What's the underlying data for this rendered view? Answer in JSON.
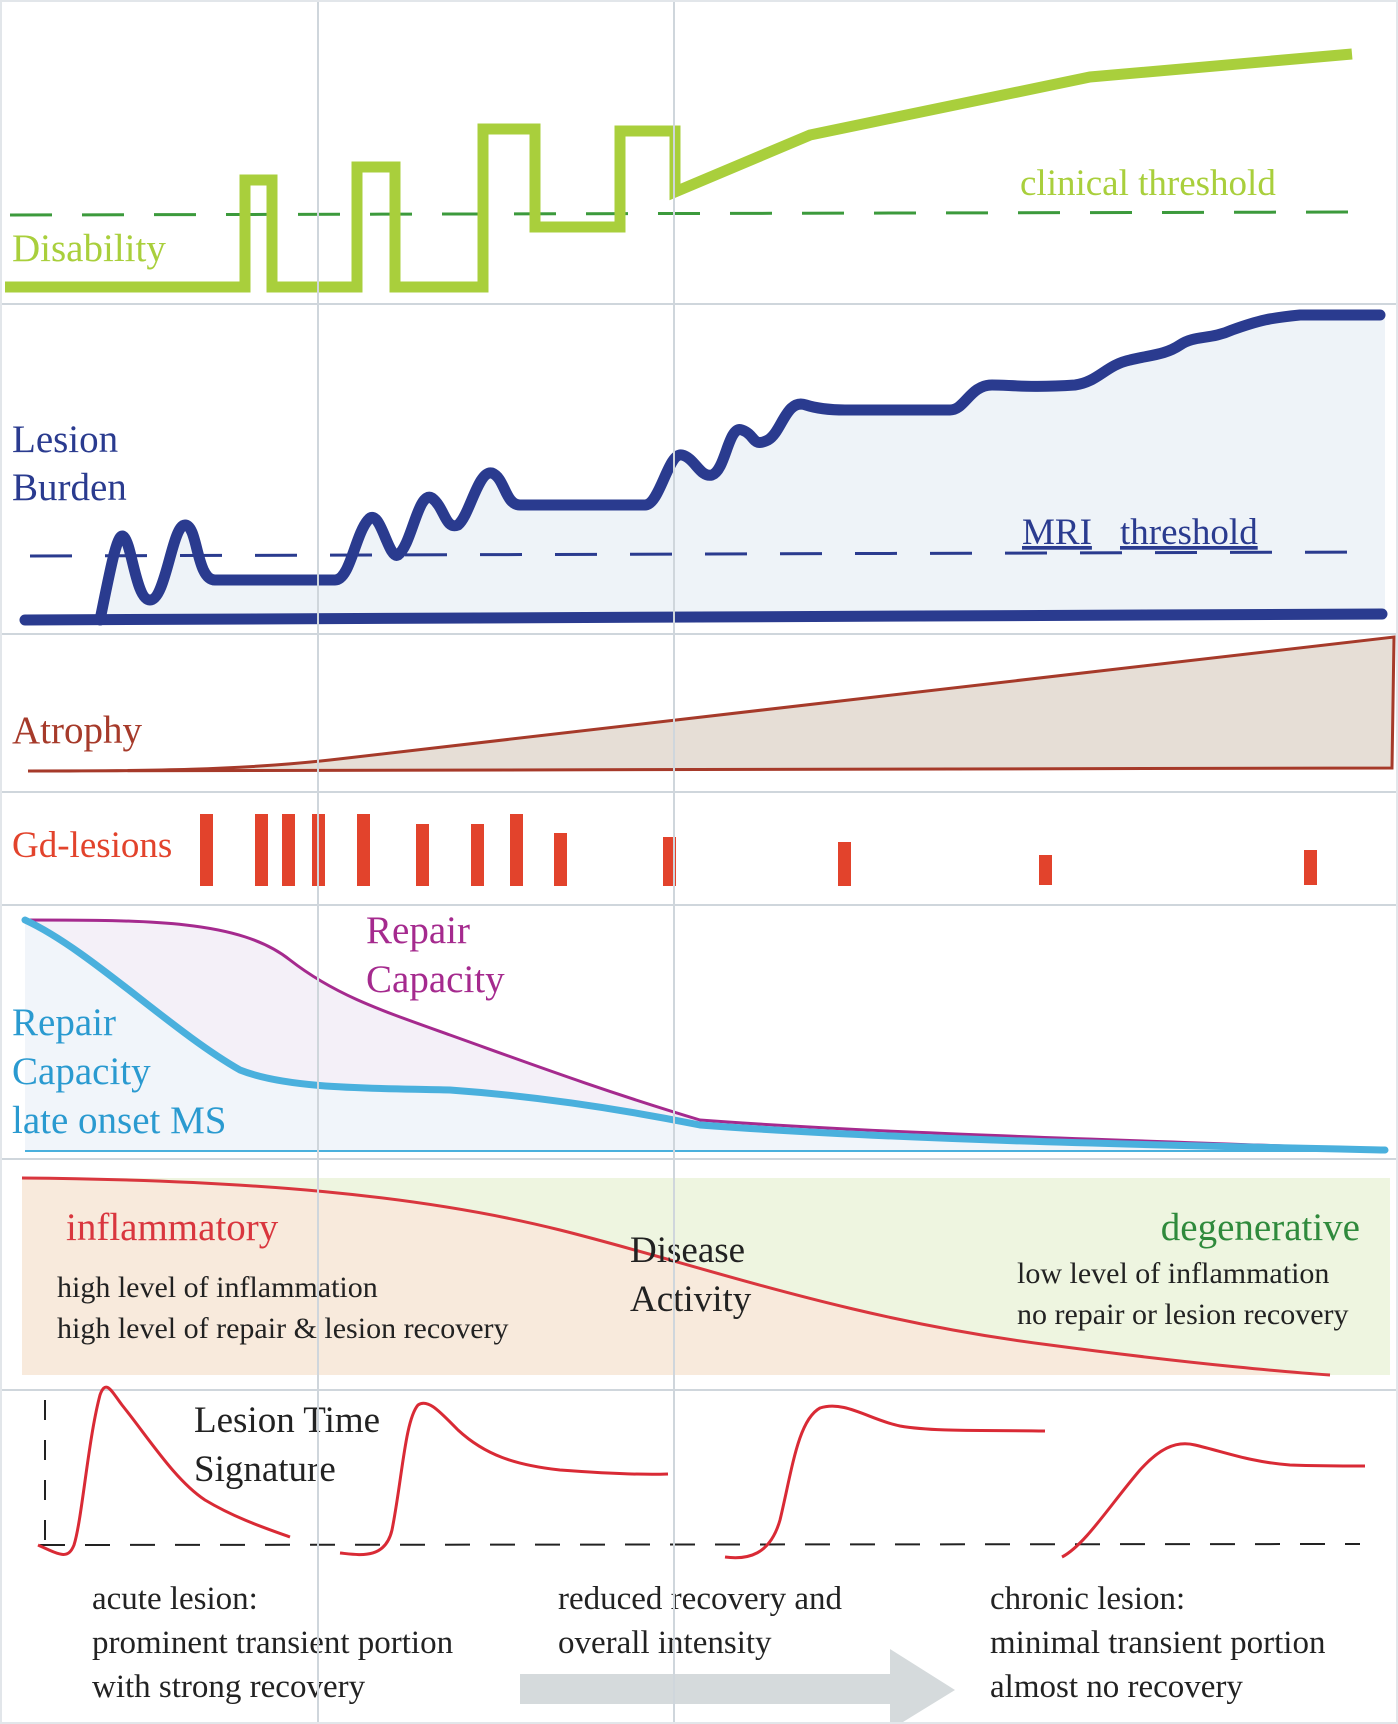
{
  "colors": {
    "disability": "#a9cf3c",
    "clinical_threshold": "#3c9a3c",
    "lesion_burden": "#2a3b8f",
    "lesion_fill": "#eef3f8",
    "atrophy": "#a63a2a",
    "atrophy_fill": "#e6ded6",
    "gd_lesions": "#e2432c",
    "repair": "#a52a8e",
    "repair_late": "#4ab0dd",
    "inflammatory": "#d9363e",
    "inflammatory_fill": "#f8eadc",
    "degenerative": "#2f8a3c",
    "degenerative_fill": "#eef5e0",
    "disease_activity_curve": "#d9363e",
    "signature_curve": "#d92a35",
    "grid": "#cfd6dc",
    "arrow": "#d5dadc",
    "text": "#222222"
  },
  "panels": {
    "disability": {
      "label": "Disability",
      "threshold_label": "clinical threshold"
    },
    "lesion_burden": {
      "label_line1": "Lesion",
      "label_line2": "Burden",
      "threshold_label_1": "MRI",
      "threshold_label_2": "threshold"
    },
    "atrophy": {
      "label": "Atrophy"
    },
    "gd_lesions": {
      "label": "Gd-lesions"
    },
    "repair": {
      "label_line1": "Repair",
      "label_line2": "Capacity",
      "late_line1": "Repair",
      "late_line2": "Capacity",
      "late_line3": "late onset MS"
    },
    "disease_activity": {
      "inflammatory_title": "inflammatory",
      "inflammatory_line1": "high level of inflammation",
      "inflammatory_line2": "high level of repair & lesion recovery",
      "center_line1": "Disease",
      "center_line2": "Activity",
      "degenerative_title": "degenerative",
      "degenerative_line1": "low level of inflammation",
      "degenerative_line2": "no repair or lesion recovery"
    },
    "lesion_time_signature": {
      "title_line1": "Lesion Time",
      "title_line2": "Signature",
      "acute_line1": "acute lesion:",
      "acute_line2": "prominent transient portion",
      "acute_line3": "with strong recovery",
      "mid_line1": "reduced recovery and",
      "mid_line2": "overall intensity",
      "chronic_line1": "chronic lesion:",
      "chronic_line2": "minimal transient portion",
      "chronic_line3": "almost no recovery"
    }
  }
}
